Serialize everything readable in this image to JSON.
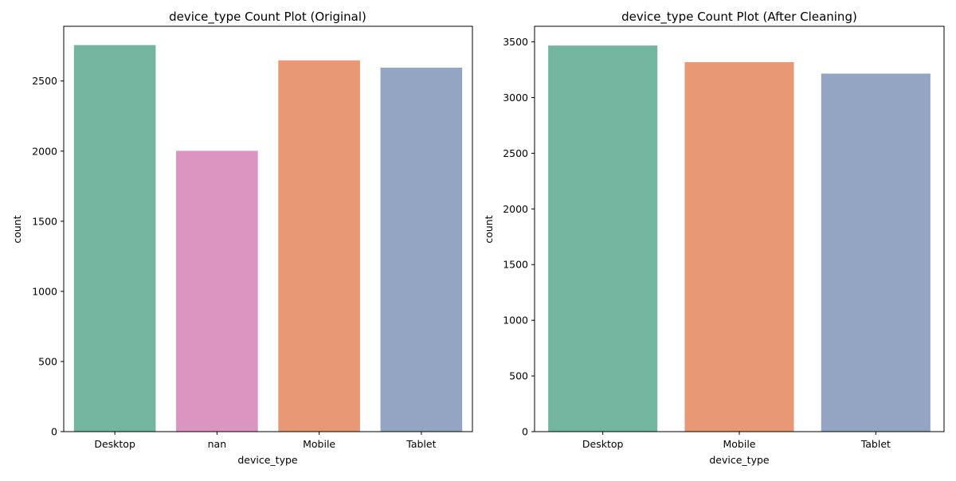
{
  "chart_data": [
    {
      "type": "bar",
      "title": "device_type Count Plot (Original)",
      "xlabel": "device_type",
      "ylabel": "count",
      "categories": [
        "Desktop",
        "nan",
        "Mobile",
        "Tablet"
      ],
      "values": [
        2756,
        2002,
        2647,
        2595
      ],
      "colors": [
        "#73b6a0",
        "#db95c1",
        "#e99875",
        "#94a4c3"
      ],
      "ylim": [
        0,
        2890
      ],
      "yticks": [
        0,
        500,
        1000,
        1500,
        2000,
        2500
      ],
      "grid": false
    },
    {
      "type": "bar",
      "title": "device_type Count Plot (After Cleaning)",
      "xlabel": "device_type",
      "ylabel": "count",
      "categories": [
        "Desktop",
        "Mobile",
        "Tablet"
      ],
      "values": [
        3467,
        3318,
        3215
      ],
      "colors": [
        "#73b6a0",
        "#e99875",
        "#94a4c3"
      ],
      "ylim": [
        0,
        3640
      ],
      "yticks": [
        0,
        500,
        1000,
        1500,
        2000,
        2500,
        3000,
        3500
      ],
      "grid": false
    }
  ]
}
